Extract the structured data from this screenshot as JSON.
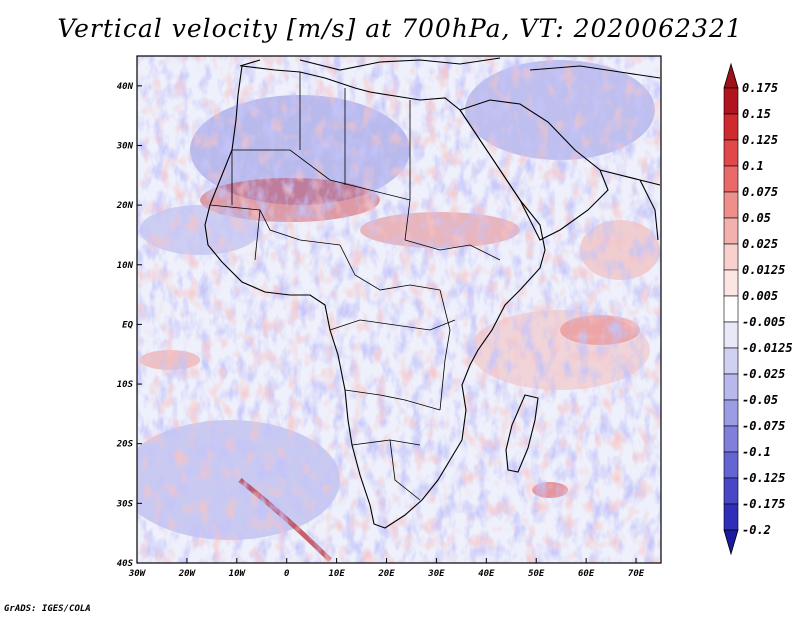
{
  "title": "Vertical velocity [m/s] at 700hPa, VT: 2020062321",
  "footer": "GrADS: IGES/COLA",
  "map": {
    "lon_ticks": [
      "30W",
      "20W",
      "10W",
      "0",
      "10E",
      "20E",
      "30E",
      "40E",
      "50E",
      "60E",
      "70E"
    ],
    "lat_ticks": [
      "40N",
      "30N",
      "20N",
      "10N",
      "EQ",
      "10S",
      "20S",
      "30S",
      "40S"
    ],
    "lon_range": [
      -30,
      75
    ],
    "lat_range": [
      -40,
      45
    ]
  },
  "colorbar": {
    "labels": [
      "0.175",
      "0.15",
      "0.125",
      "0.1",
      "0.075",
      "0.05",
      "0.025",
      "0.0125",
      "0.005",
      "-0.005",
      "-0.0125",
      "-0.025",
      "-0.05",
      "-0.075",
      "-0.1",
      "-0.125",
      "-0.175",
      "-0.2"
    ],
    "colors": [
      "#b0141e",
      "#cf2a2e",
      "#e0484a",
      "#e96a68",
      "#ef8f8b",
      "#f3b1ad",
      "#f8d0cd",
      "#fbe6e4",
      "#ffffff",
      "#e8e8f8",
      "#d0d0f2",
      "#b8b8ec",
      "#9c9ce4",
      "#8080dc",
      "#6464d2",
      "#4848c6",
      "#2e2eb8",
      "#1a1aa0"
    ],
    "top_arrow_color": "#a01018",
    "bottom_arrow_color": "#1a1aa0"
  }
}
